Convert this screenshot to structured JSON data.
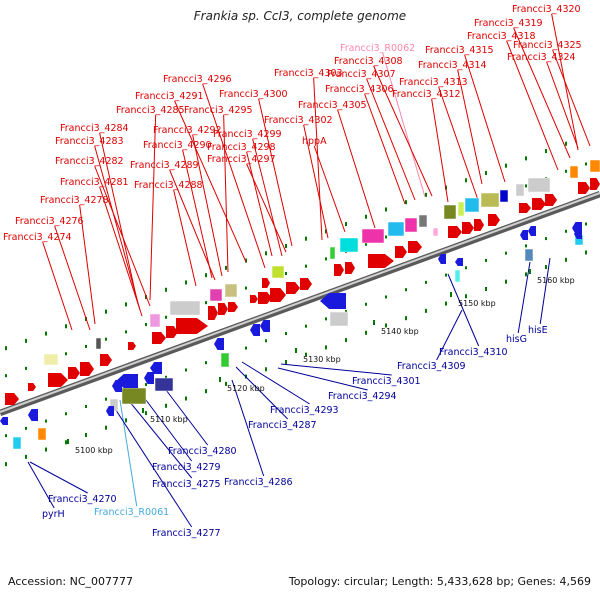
{
  "header": {
    "title": "Frankia sp. CcI3, complete genome"
  },
  "footer": {
    "accession": "Accession: NC_007777",
    "topology": "Topology: circular; Length: 5,433,628 bp; Genes: 4,569"
  },
  "scale_ticks": [
    "5100 kbp",
    "5110 kbp",
    "5120 kbp",
    "5130 kbp",
    "5140 kbp",
    "5150 kbp",
    "5160 kbp"
  ],
  "colors": {
    "forward_label": "#dd0000",
    "reverse_label": "#000099",
    "rna_label_forward": "#ff88aa",
    "rna_label_reverse": "#44aadd",
    "backbone": "#8a8a8a",
    "forward_arrow": "#e00000",
    "reverse_arrow": "#1a1adc",
    "tick": "#007700"
  },
  "top_labels": [
    "Francci3_4320",
    "Francci3_4319",
    "Francci3_4318",
    "Francci3_4315",
    "Francci3_4325",
    "Francci3_4324",
    "Francci3_R0062",
    "Francci3_4308",
    "Francci3_4314",
    "Francci3_4307",
    "Francci3_4313",
    "Francci3_4306",
    "Francci3_4312",
    "Francci3_4303",
    "Francci3_4305",
    "Francci3_4296",
    "Francci3_4300",
    "Francci3_4291",
    "Francci3_4302",
    "Francci3_4285",
    "Francci3_4295",
    "Francci3_4292",
    "Francci3_4299",
    "Francci3_4284",
    "hppA",
    "Francci3_4283",
    "Francci3_4290",
    "Francci3_4298",
    "Francci3_4297",
    "Francci3_4282",
    "Francci3_4289",
    "Francci3_4281",
    "Francci3_4288",
    "Francci3_4278",
    "Francci3_4276",
    "Francci3_4274"
  ],
  "bottom_labels": [
    "hisG",
    "hisE",
    "Francci3_4310",
    "Francci3_4309",
    "Francci3_4301",
    "Francci3_4294",
    "Francci3_4293",
    "Francci3_4287",
    "Francci3_4280",
    "Francci3_4279",
    "Francci3_4275",
    "Francci3_4286",
    "Francci3_4270",
    "pyrH",
    "Francci3_R0061",
    "Francci3_4277"
  ]
}
